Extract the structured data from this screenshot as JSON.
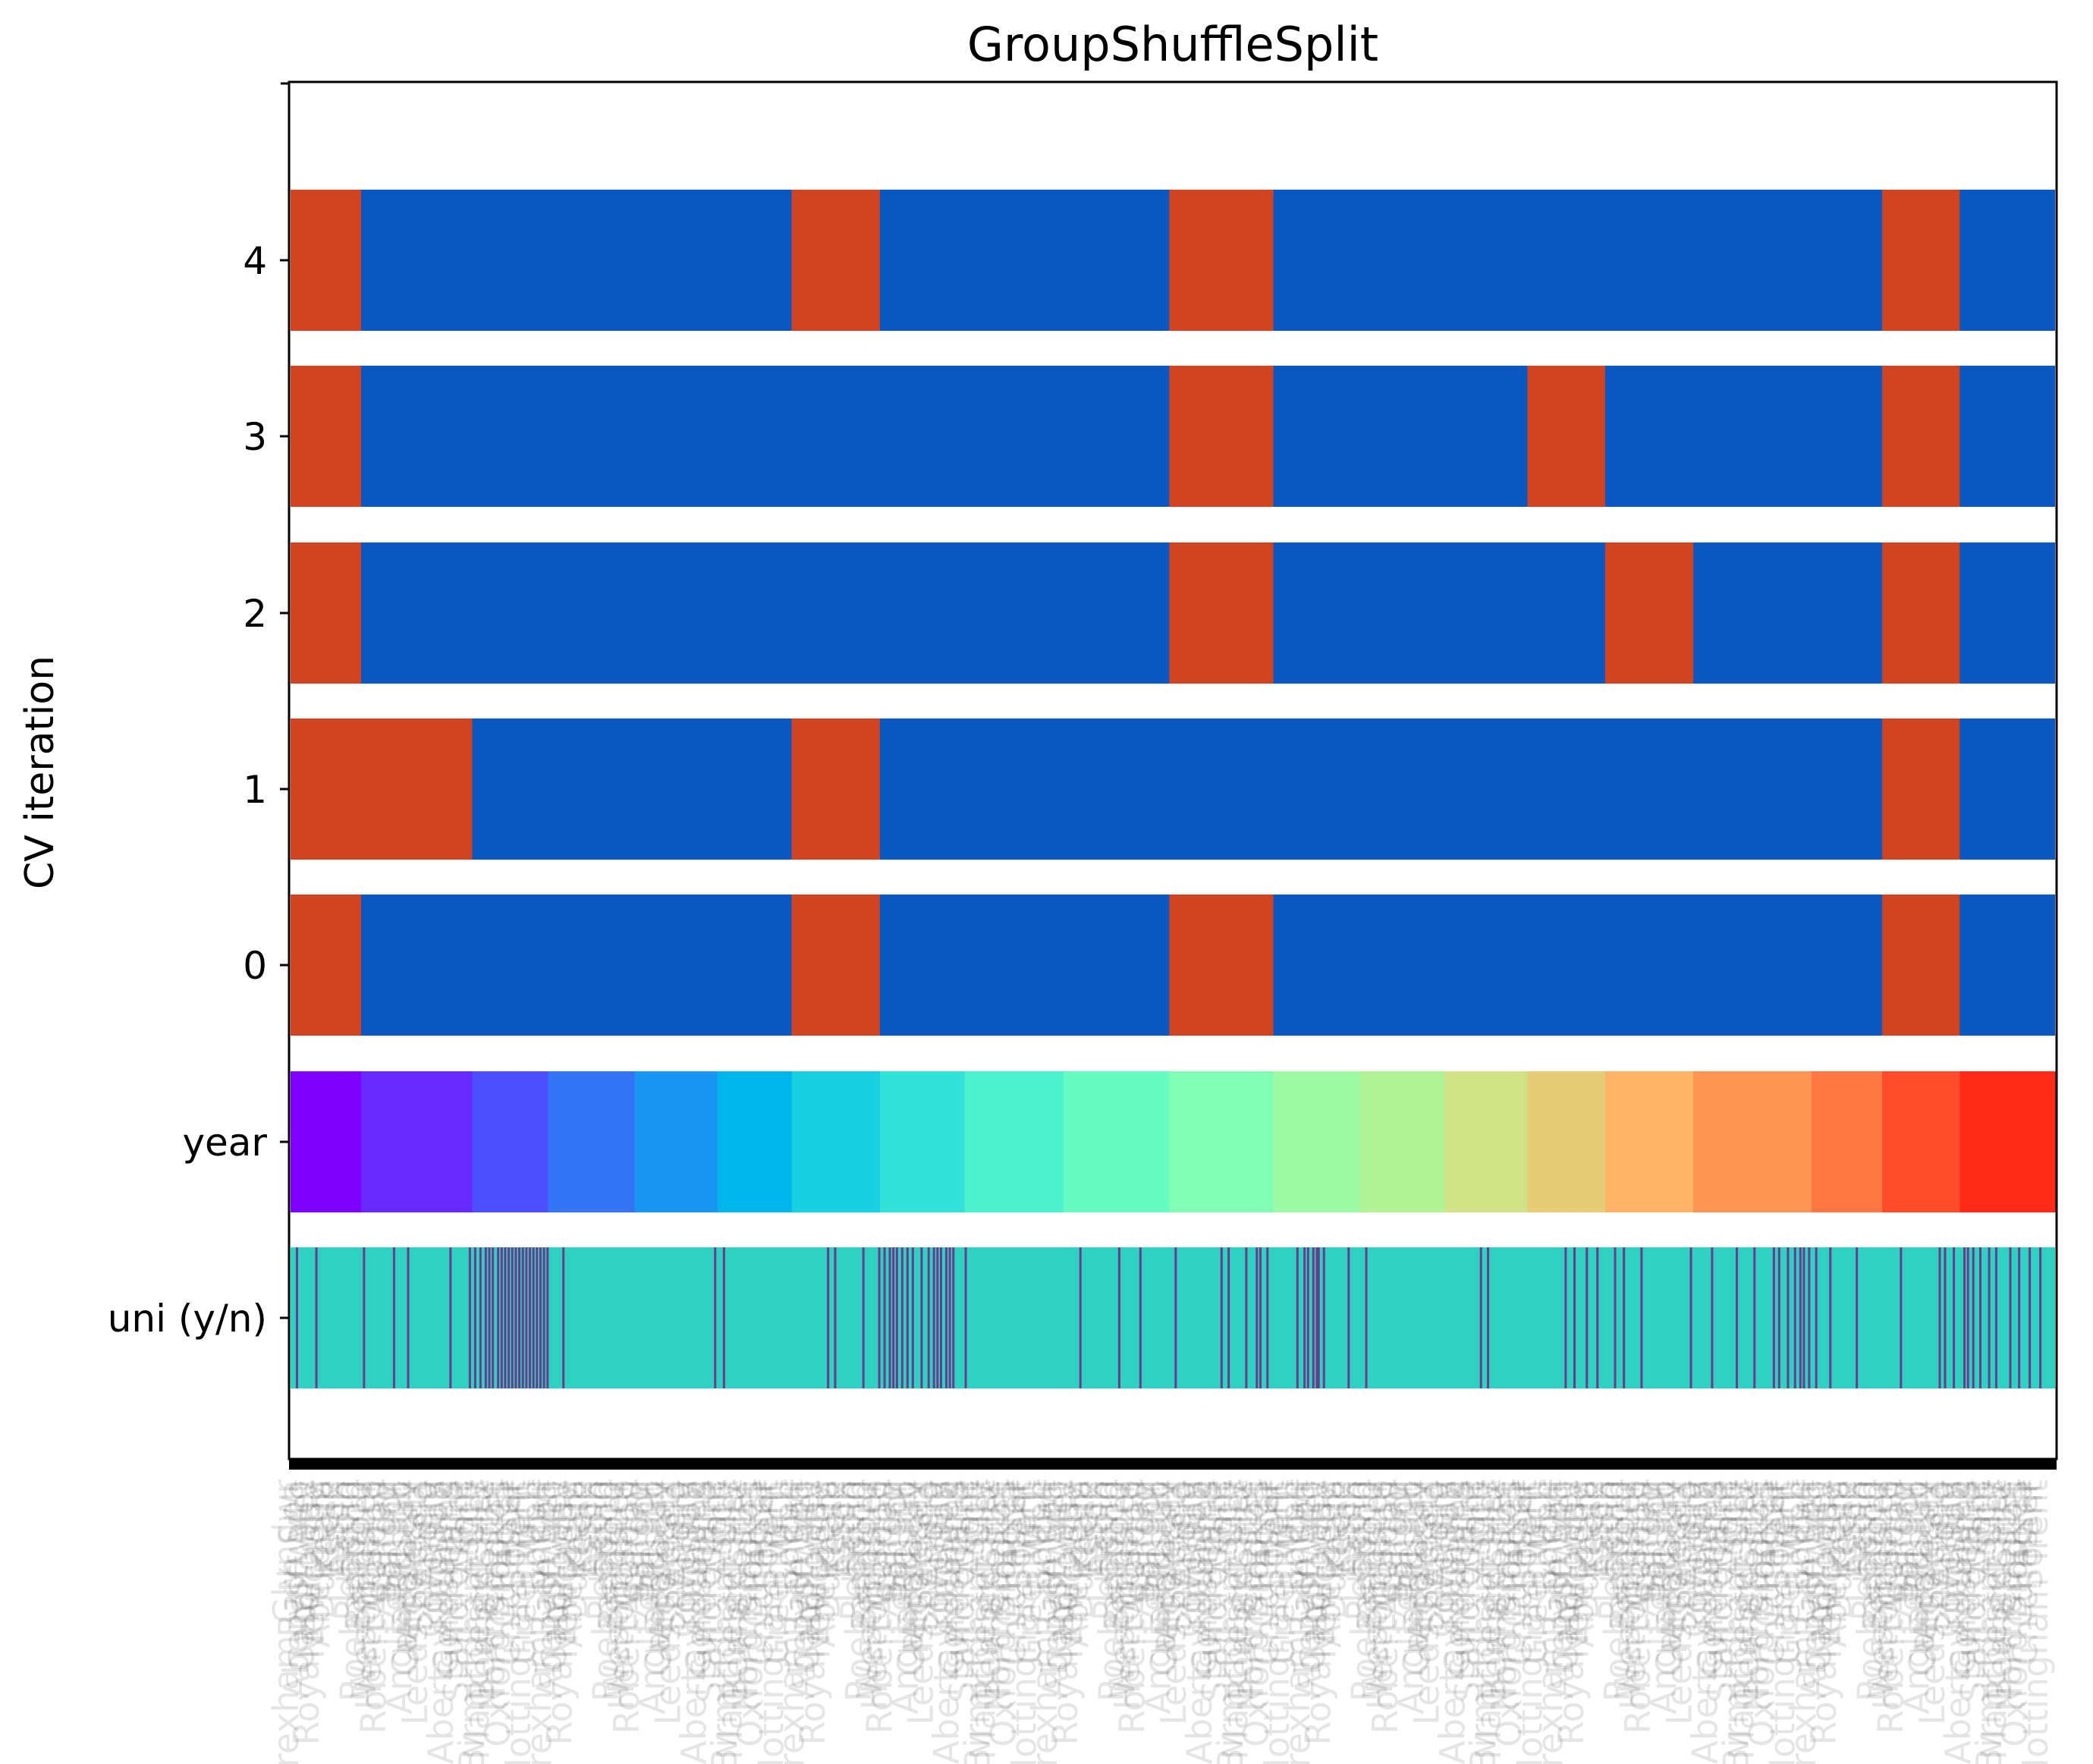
{
  "chart_data": {
    "type": "heatmap",
    "title": "GroupShuffleSplit",
    "ylabel": "CV iteration",
    "xlabel": "",
    "xlim": [
      0,
      1000
    ],
    "colors": {
      "test": "#d04422",
      "train": "#0b57c1",
      "uni_main": "#2ed1c2",
      "uni_mark": "#6a3c8e"
    },
    "cv_rows": [
      {
        "label": "0",
        "test_intervals": [
          [
            0,
            40
          ],
          [
            284,
            334
          ],
          [
            498,
            557
          ],
          [
            902,
            946
          ]
        ]
      },
      {
        "label": "1",
        "test_intervals": [
          [
            0,
            103
          ],
          [
            284,
            334
          ],
          [
            902,
            946
          ]
        ]
      },
      {
        "label": "2",
        "test_intervals": [
          [
            0,
            40
          ],
          [
            498,
            557
          ],
          [
            745,
            795
          ],
          [
            902,
            946
          ]
        ]
      },
      {
        "label": "3",
        "test_intervals": [
          [
            0,
            40
          ],
          [
            498,
            557
          ],
          [
            701,
            745
          ],
          [
            902,
            946
          ]
        ]
      },
      {
        "label": "4",
        "test_intervals": [
          [
            0,
            40
          ],
          [
            284,
            334
          ],
          [
            498,
            557
          ],
          [
            902,
            946
          ]
        ]
      }
    ],
    "year_row": {
      "label": "year",
      "segments": [
        {
          "start": 0,
          "end": 40,
          "color": "#7f00ff"
        },
        {
          "start": 40,
          "end": 103,
          "color": "#6629fe"
        },
        {
          "start": 103,
          "end": 146,
          "color": "#4c50fc"
        },
        {
          "start": 146,
          "end": 195,
          "color": "#3474f6"
        },
        {
          "start": 195,
          "end": 242,
          "color": "#1996f3"
        },
        {
          "start": 242,
          "end": 284,
          "color": "#00b5eb"
        },
        {
          "start": 284,
          "end": 334,
          "color": "#19cfe2"
        },
        {
          "start": 334,
          "end": 382,
          "color": "#32e1d7"
        },
        {
          "start": 382,
          "end": 438,
          "color": "#4cf2ce"
        },
        {
          "start": 438,
          "end": 498,
          "color": "#66fcc1"
        },
        {
          "start": 498,
          "end": 557,
          "color": "#80feb3"
        },
        {
          "start": 557,
          "end": 606,
          "color": "#9cfba4"
        },
        {
          "start": 606,
          "end": 654,
          "color": "#b2f296"
        },
        {
          "start": 654,
          "end": 701,
          "color": "#d1e286"
        },
        {
          "start": 701,
          "end": 745,
          "color": "#e6cc76"
        },
        {
          "start": 745,
          "end": 795,
          "color": "#ffb366"
        },
        {
          "start": 795,
          "end": 862,
          "color": "#ff9553"
        },
        {
          "start": 862,
          "end": 902,
          "color": "#ff7843"
        },
        {
          "start": 902,
          "end": 946,
          "color": "#ff4c2a"
        },
        {
          "start": 946,
          "end": 1000,
          "color": "#ff2a18"
        }
      ]
    },
    "uni_row": {
      "label": "uni (y/n)",
      "marks": [
        3,
        14,
        41,
        58,
        66,
        90,
        101,
        104,
        107,
        110,
        112,
        114,
        117,
        119,
        121,
        123,
        125,
        127,
        129,
        131,
        133,
        135,
        137,
        139,
        141,
        143,
        145,
        154,
        240,
        245,
        304,
        308,
        324,
        333,
        336,
        339,
        341,
        343,
        346,
        349,
        352,
        357,
        361,
        364,
        366,
        368,
        371,
        373,
        375,
        382,
        447,
        469,
        481,
        501,
        527,
        531,
        541,
        547,
        549,
        553,
        570,
        574,
        576,
        579,
        581,
        582,
        585,
        599,
        609,
        674,
        678,
        722,
        727,
        734,
        740,
        750,
        755,
        765,
        793,
        805,
        819,
        829,
        840,
        843,
        848,
        852,
        855,
        857,
        860,
        864,
        872,
        887,
        912,
        934,
        937,
        942,
        948,
        950,
        953,
        957,
        962,
        966,
        974,
        979,
        985,
        991
      ]
    },
    "ytick_labels": [
      "4",
      "3",
      "2",
      "1",
      "0",
      "year",
      "uni (y/n)"
    ],
    "xtick_labels": [
      "Wrexham Glyndwr",
      "Bath Spa",
      "Aberystwyth",
      "Cardiff Met",
      "Royal Holloway",
      "Newcastle",
      "Aberdeen",
      "Durham",
      "Keele",
      "Essex",
      "Aston",
      "Lincoln",
      "Reading",
      "Roehampton",
      "Bradford",
      "Westminster",
      "Hertfordshire",
      "Robert Gordon",
      "Abertay",
      "Salford",
      "Bangor",
      "Edge Hill",
      "Anglia Ruskin",
      "Canterbury",
      "Middlesex",
      "Leeds Beckett",
      "Sheffield",
      "Anglia",
      "Coventry",
      "Kingston",
      "Abertay Dundee",
      "Goldsmiths",
      "Sunderland",
      "Staffordshire",
      "Kent",
      "Aston",
      "Birmingham City",
      "Manchester Met",
      "Bedfordshire",
      "Chester",
      "Northampton",
      "Oxford Brookes",
      "Cumbria",
      "Chichester",
      "Solent",
      "Nottingham Trent",
      "Greenwich",
      "UCL",
      "Bolton"
    ]
  }
}
